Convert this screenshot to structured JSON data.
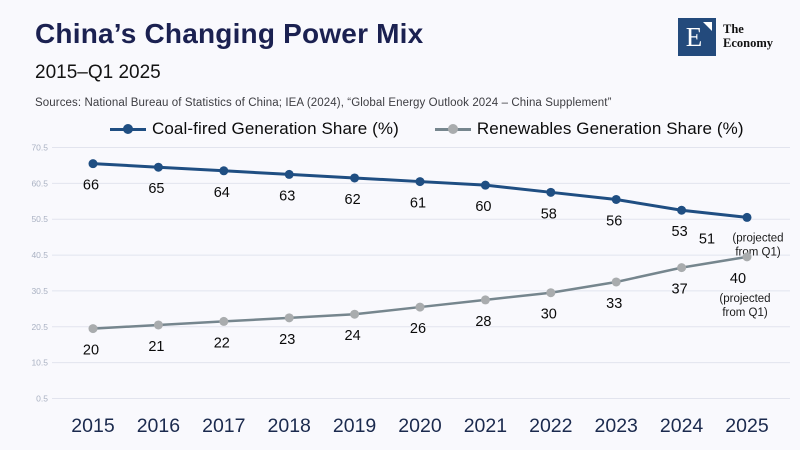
{
  "page": {
    "title": "China’s Changing Power Mix",
    "subtitle": "2015–Q1 2025",
    "sources": "Sources:  National Bureau of Statistics of China; IEA (2024), “Global Energy Outlook 2024 – China Supplement”"
  },
  "logo": {
    "monogram": "E",
    "wordmark_line1": "The",
    "wordmark_line2": "Economy"
  },
  "colors": {
    "background": "#f9f9fd",
    "title": "#1b2151",
    "coal_line": "#1f4e82",
    "renewables_line": "#76868e",
    "renewables_marker": "#a9acae",
    "grid": "#e2e4ee",
    "y_tick_label": "#a9b1c2",
    "x_axis_label": "#1b2a4e",
    "data_label": "#0a0a0a",
    "logo_bg": "#234a7c"
  },
  "chart_data": {
    "type": "line",
    "x": [
      2015,
      2016,
      2017,
      2018,
      2019,
      2020,
      2021,
      2022,
      2023,
      2024,
      2025
    ],
    "series": [
      {
        "name": "Coal-fired Generation Share (%)",
        "values": [
          66,
          65,
          64,
          63,
          62,
          61,
          60,
          58,
          56,
          53,
          51
        ],
        "color": "#1f4e82",
        "marker_color": "#1f4e82",
        "last_point_note": "(projected from Q1)"
      },
      {
        "name": "Renewables Generation Share (%)",
        "values": [
          20,
          21,
          22,
          23,
          24,
          26,
          28,
          30,
          33,
          37,
          40
        ],
        "color": "#76868e",
        "marker_color": "#a9acae",
        "last_point_note": "(projected from Q1)"
      }
    ],
    "yticks": [
      70.5,
      60.5,
      50.5,
      40.5,
      30.5,
      20.5,
      10.5,
      0.5
    ],
    "ylim": [
      0.5,
      70.5
    ],
    "grid": true,
    "legend_position": "top",
    "data_labels": true,
    "projected_note_lines": [
      "(projected",
      "from Q1)"
    ]
  }
}
